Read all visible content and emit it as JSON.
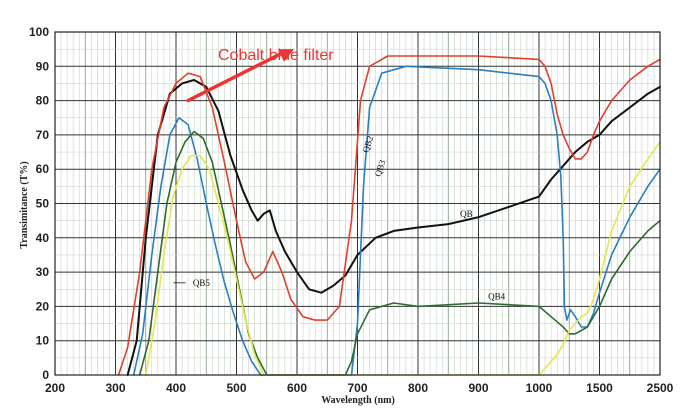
{
  "chart_data": {
    "type": "line",
    "xlabel": "Wavelength (nm)",
    "ylabel": "Transimitance (T%)",
    "x_ticks": [
      "200",
      "300",
      "400",
      "500",
      "600",
      "700",
      "800",
      "900",
      "1000",
      "1500",
      "2500"
    ],
    "x_tick_nm": [
      200,
      300,
      400,
      500,
      600,
      700,
      800,
      900,
      1000,
      1500,
      2500
    ],
    "y_ticks": [
      "0",
      "10",
      "20",
      "30",
      "40",
      "50",
      "60",
      "70",
      "80",
      "90",
      "100"
    ],
    "ylim": [
      0,
      100
    ],
    "grid": true,
    "annotation": {
      "text": "Cobalt blue filter",
      "arrow_from": [
        420,
        80
      ],
      "arrow_to": [
        595,
        95
      ]
    },
    "series": [
      {
        "name": "QB",
        "color": "#111111",
        "points": [
          [
            320,
            0
          ],
          [
            335,
            10
          ],
          [
            350,
            40
          ],
          [
            370,
            70
          ],
          [
            390,
            82
          ],
          [
            410,
            85
          ],
          [
            430,
            86
          ],
          [
            450,
            84
          ],
          [
            470,
            77
          ],
          [
            490,
            64
          ],
          [
            510,
            54
          ],
          [
            525,
            48
          ],
          [
            535,
            45
          ],
          [
            545,
            47
          ],
          [
            555,
            48
          ],
          [
            565,
            42
          ],
          [
            580,
            36
          ],
          [
            600,
            30
          ],
          [
            620,
            25
          ],
          [
            640,
            24
          ],
          [
            660,
            26
          ],
          [
            680,
            29
          ],
          [
            700,
            35
          ],
          [
            730,
            40
          ],
          [
            760,
            42
          ],
          [
            800,
            43
          ],
          [
            850,
            44
          ],
          [
            900,
            46
          ],
          [
            950,
            49
          ],
          [
            1000,
            52
          ],
          [
            1100,
            57
          ],
          [
            1200,
            61
          ],
          [
            1300,
            65
          ],
          [
            1400,
            68
          ],
          [
            1500,
            70
          ],
          [
            1700,
            74
          ],
          [
            2000,
            78
          ],
          [
            2300,
            82
          ],
          [
            2500,
            84
          ]
        ]
      },
      {
        "name": "QB2",
        "color": "#e0402a",
        "points": [
          [
            305,
            0
          ],
          [
            320,
            8
          ],
          [
            340,
            30
          ],
          [
            360,
            60
          ],
          [
            380,
            78
          ],
          [
            400,
            85
          ],
          [
            420,
            88
          ],
          [
            440,
            87
          ],
          [
            460,
            78
          ],
          [
            480,
            62
          ],
          [
            500,
            45
          ],
          [
            515,
            33
          ],
          [
            530,
            28
          ],
          [
            545,
            30
          ],
          [
            560,
            36
          ],
          [
            575,
            30
          ],
          [
            590,
            22
          ],
          [
            610,
            17
          ],
          [
            630,
            16
          ],
          [
            650,
            16
          ],
          [
            670,
            20
          ],
          [
            690,
            45
          ],
          [
            705,
            80
          ],
          [
            720,
            90
          ],
          [
            750,
            93
          ],
          [
            800,
            93
          ],
          [
            900,
            93
          ],
          [
            1000,
            92
          ],
          [
            1050,
            90
          ],
          [
            1100,
            85
          ],
          [
            1150,
            76
          ],
          [
            1200,
            70
          ],
          [
            1250,
            66
          ],
          [
            1300,
            63
          ],
          [
            1350,
            63
          ],
          [
            1400,
            65
          ],
          [
            1450,
            70
          ],
          [
            1500,
            74
          ],
          [
            1700,
            80
          ],
          [
            2000,
            86
          ],
          [
            2300,
            90
          ],
          [
            2500,
            92
          ]
        ]
      },
      {
        "name": "QB3",
        "color": "#2a7fc0",
        "points": [
          [
            330,
            0
          ],
          [
            345,
            12
          ],
          [
            360,
            35
          ],
          [
            375,
            55
          ],
          [
            390,
            70
          ],
          [
            405,
            75
          ],
          [
            420,
            73
          ],
          [
            435,
            63
          ],
          [
            450,
            50
          ],
          [
            465,
            38
          ],
          [
            480,
            27
          ],
          [
            495,
            18
          ],
          [
            510,
            10
          ],
          [
            525,
            4
          ],
          [
            540,
            0
          ],
          [
            690,
            0
          ],
          [
            700,
            15
          ],
          [
            710,
            55
          ],
          [
            720,
            78
          ],
          [
            740,
            88
          ],
          [
            780,
            90
          ],
          [
            900,
            89
          ],
          [
            1000,
            87
          ],
          [
            1050,
            85
          ],
          [
            1100,
            80
          ],
          [
            1150,
            70
          ],
          [
            1180,
            58
          ],
          [
            1200,
            40
          ],
          [
            1210,
            20
          ],
          [
            1230,
            16
          ],
          [
            1260,
            19
          ],
          [
            1300,
            17
          ],
          [
            1350,
            14
          ],
          [
            1400,
            14
          ],
          [
            1450,
            18
          ],
          [
            1500,
            24
          ],
          [
            1700,
            35
          ],
          [
            2000,
            46
          ],
          [
            2300,
            55
          ],
          [
            2500,
            60
          ]
        ]
      },
      {
        "name": "QB4",
        "color": "#2f6a2f",
        "points": [
          [
            340,
            0
          ],
          [
            355,
            10
          ],
          [
            370,
            30
          ],
          [
            385,
            50
          ],
          [
            400,
            62
          ],
          [
            415,
            68
          ],
          [
            430,
            71
          ],
          [
            445,
            69
          ],
          [
            460,
            62
          ],
          [
            475,
            50
          ],
          [
            490,
            38
          ],
          [
            505,
            25
          ],
          [
            520,
            12
          ],
          [
            535,
            5
          ],
          [
            550,
            0
          ],
          [
            680,
            0
          ],
          [
            690,
            4
          ],
          [
            700,
            12
          ],
          [
            720,
            19
          ],
          [
            760,
            21
          ],
          [
            800,
            20
          ],
          [
            900,
            21
          ],
          [
            1000,
            20
          ],
          [
            1100,
            17
          ],
          [
            1200,
            14
          ],
          [
            1250,
            12
          ],
          [
            1300,
            12
          ],
          [
            1400,
            14
          ],
          [
            1500,
            20
          ],
          [
            1700,
            28
          ],
          [
            2000,
            36
          ],
          [
            2300,
            42
          ],
          [
            2500,
            45
          ]
        ]
      },
      {
        "name": "QB5",
        "color": "#e6e650",
        "points": [
          [
            350,
            0
          ],
          [
            365,
            15
          ],
          [
            380,
            35
          ],
          [
            395,
            52
          ],
          [
            410,
            60
          ],
          [
            425,
            64
          ],
          [
            440,
            64
          ],
          [
            455,
            60
          ],
          [
            470,
            50
          ],
          [
            485,
            40
          ],
          [
            500,
            28
          ],
          [
            515,
            16
          ],
          [
            530,
            6
          ],
          [
            545,
            0
          ],
          [
            1000,
            0
          ],
          [
            1050,
            2
          ],
          [
            1100,
            4
          ],
          [
            1150,
            6
          ],
          [
            1200,
            9
          ],
          [
            1250,
            13
          ],
          [
            1300,
            15
          ],
          [
            1350,
            17
          ],
          [
            1400,
            18
          ],
          [
            1450,
            22
          ],
          [
            1500,
            28
          ],
          [
            1700,
            42
          ],
          [
            2000,
            55
          ],
          [
            2300,
            63
          ],
          [
            2500,
            68
          ]
        ]
      }
    ],
    "series_labels": [
      {
        "series": "QB2",
        "x": 722,
        "y": 67,
        "rotate": -72
      },
      {
        "series": "QB3",
        "x": 742,
        "y": 60,
        "rotate": -72
      },
      {
        "series": "QB",
        "x": 880,
        "y": 46,
        "rotate": 0
      },
      {
        "series": "QB4",
        "x": 930,
        "y": 22,
        "rotate": 0
      },
      {
        "series": "QB5",
        "x": 442,
        "y": 26,
        "rotate": 0
      }
    ]
  }
}
